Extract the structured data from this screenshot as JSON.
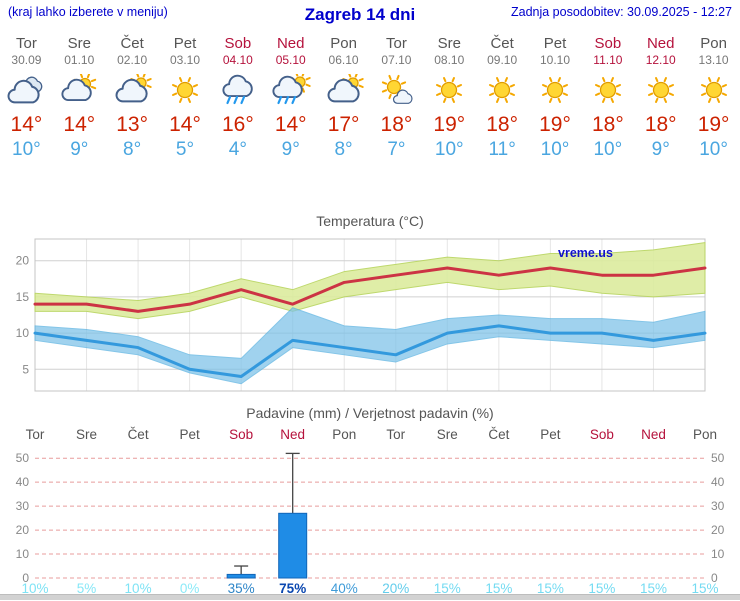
{
  "header": {
    "note": "(kraj lahko izberete v meniju)",
    "title": "Zagreb 14 dni",
    "updated": "Zadnja posodobitev: 30.09.2025 - 12:27"
  },
  "colors": {
    "header_text": "#0000cc",
    "weekday": "#555555",
    "weekday_date": "#777777",
    "weekend": "#b5123c",
    "temp_high": "#cc2200",
    "temp_low": "#4aa6e0",
    "temp_high_line": "#cc3344",
    "temp_low_line": "#3399dd",
    "band_green": "#dcec9e",
    "band_green_edge": "#b8d45e",
    "band_blue": "#7cc2e8",
    "band_blue_edge": "#55b0e0",
    "bar_fill": "#1f8ce6",
    "bar_edge": "#1266b8",
    "precip_grid": "#e89c9c",
    "watermark": "#1111cc",
    "sun_fill": "#ffd633",
    "sun_edge": "#e09c00",
    "sun_ray": "#f5a800",
    "cloud_fill": "#f0f6fc",
    "cloud_edge": "#44608a",
    "rain_drop": "#2299ee"
  },
  "days": [
    {
      "name": "Tor",
      "date": "30.09",
      "weekend": false,
      "icon": "cloudy",
      "high": "14°",
      "low": "10°"
    },
    {
      "name": "Sre",
      "date": "01.10",
      "weekend": false,
      "icon": "partly-cloudy",
      "high": "14°",
      "low": "9°"
    },
    {
      "name": "Čet",
      "date": "02.10",
      "weekend": false,
      "icon": "mostly-cloudy",
      "high": "13°",
      "low": "8°"
    },
    {
      "name": "Pet",
      "date": "03.10",
      "weekend": false,
      "icon": "sunny",
      "high": "14°",
      "low": "5°"
    },
    {
      "name": "Sob",
      "date": "04.10",
      "weekend": true,
      "icon": "rain",
      "high": "16°",
      "low": "4°"
    },
    {
      "name": "Ned",
      "date": "05.10",
      "weekend": true,
      "icon": "showers",
      "high": "14°",
      "low": "9°"
    },
    {
      "name": "Pon",
      "date": "06.10",
      "weekend": false,
      "icon": "mostly-cloudy",
      "high": "17°",
      "low": "8°"
    },
    {
      "name": "Tor",
      "date": "07.10",
      "weekend": false,
      "icon": "mostly-sunny",
      "high": "18°",
      "low": "7°"
    },
    {
      "name": "Sre",
      "date": "08.10",
      "weekend": false,
      "icon": "sunny",
      "high": "19°",
      "low": "10°"
    },
    {
      "name": "Čet",
      "date": "09.10",
      "weekend": false,
      "icon": "sunny",
      "high": "18°",
      "low": "11°"
    },
    {
      "name": "Pet",
      "date": "10.10",
      "weekend": false,
      "icon": "sunny",
      "high": "19°",
      "low": "10°"
    },
    {
      "name": "Sob",
      "date": "11.10",
      "weekend": true,
      "icon": "sunny",
      "high": "18°",
      "low": "10°"
    },
    {
      "name": "Ned",
      "date": "12.10",
      "weekend": true,
      "icon": "sunny",
      "high": "18°",
      "low": "9°"
    },
    {
      "name": "Pon",
      "date": "13.10",
      "weekend": false,
      "icon": "sunny",
      "high": "19°",
      "low": "10°"
    }
  ],
  "chart_data": [
    {
      "type": "line",
      "title": "Temperatura (°C)",
      "watermark": "vreme.us",
      "x": [
        "Tor",
        "Sre",
        "Čet",
        "Pet",
        "Sob",
        "Ned",
        "Pon",
        "Tor",
        "Sre",
        "Čet",
        "Pet",
        "Sob",
        "Ned",
        "Pon"
      ],
      "ylim": [
        2,
        23
      ],
      "yticks": [
        5,
        10,
        15,
        20
      ],
      "grid": true,
      "series": [
        {
          "name": "max",
          "values": [
            14,
            14,
            13,
            14,
            16,
            14,
            17,
            18,
            19,
            18,
            19,
            18,
            18,
            19
          ]
        },
        {
          "name": "min",
          "values": [
            10,
            9,
            8,
            5,
            4,
            9,
            8,
            7,
            10,
            11,
            10,
            10,
            9,
            10
          ]
        },
        {
          "name": "max_range_upper",
          "values": [
            15.5,
            15,
            14.5,
            15.5,
            17.5,
            16,
            18.5,
            19.5,
            20.5,
            20,
            21,
            21,
            21.5,
            22.5
          ]
        },
        {
          "name": "max_range_lower",
          "values": [
            13,
            13,
            12,
            13,
            15,
            13,
            15,
            16,
            17,
            16,
            16.5,
            15.5,
            15,
            15.5
          ]
        },
        {
          "name": "min_range_upper",
          "values": [
            11,
            10.5,
            9.5,
            7,
            6.5,
            13.5,
            11,
            10.5,
            12,
            12.5,
            12,
            12,
            11.5,
            13
          ]
        },
        {
          "name": "min_range_lower",
          "values": [
            9,
            8,
            7,
            4.5,
            3,
            8,
            7,
            6,
            8.5,
            9.5,
            9,
            8.5,
            8,
            9
          ]
        }
      ]
    },
    {
      "type": "bar",
      "title": "Padavine (mm) / Verjetnost padavin (%)",
      "categories": [
        "Tor",
        "Sre",
        "Čet",
        "Pet",
        "Sob",
        "Ned",
        "Pon",
        "Tor",
        "Sre",
        "Čet",
        "Pet",
        "Sob",
        "Ned",
        "Pon"
      ],
      "ylim": [
        0,
        53
      ],
      "yticks": [
        0,
        10,
        20,
        30,
        40,
        50
      ],
      "values": [
        0,
        0,
        0,
        0,
        1.5,
        27,
        0,
        0,
        0,
        0,
        0,
        0,
        0,
        0
      ],
      "whisker_max": [
        null,
        null,
        null,
        null,
        5,
        52,
        null,
        null,
        null,
        null,
        null,
        null,
        null,
        null
      ],
      "probabilities": [
        {
          "label": "10%",
          "color": "#7fe3f5",
          "bold": false
        },
        {
          "label": "5%",
          "color": "#86e7f7",
          "bold": false
        },
        {
          "label": "10%",
          "color": "#7fe3f5",
          "bold": false
        },
        {
          "label": "0%",
          "color": "#8ceaf8",
          "bold": false
        },
        {
          "label": "35%",
          "color": "#2e86c8",
          "bold": false
        },
        {
          "label": "75%",
          "color": "#0a47b0",
          "bold": true
        },
        {
          "label": "40%",
          "color": "#3e9bd8",
          "bold": false
        },
        {
          "label": "20%",
          "color": "#63cdec",
          "bold": false
        },
        {
          "label": "15%",
          "color": "#74dbf2",
          "bold": false
        },
        {
          "label": "15%",
          "color": "#74dbf2",
          "bold": false
        },
        {
          "label": "15%",
          "color": "#74dbf2",
          "bold": false
        },
        {
          "label": "15%",
          "color": "#74dbf2",
          "bold": false
        },
        {
          "label": "15%",
          "color": "#74dbf2",
          "bold": false
        },
        {
          "label": "15%",
          "color": "#74dbf2",
          "bold": false
        }
      ]
    }
  ]
}
